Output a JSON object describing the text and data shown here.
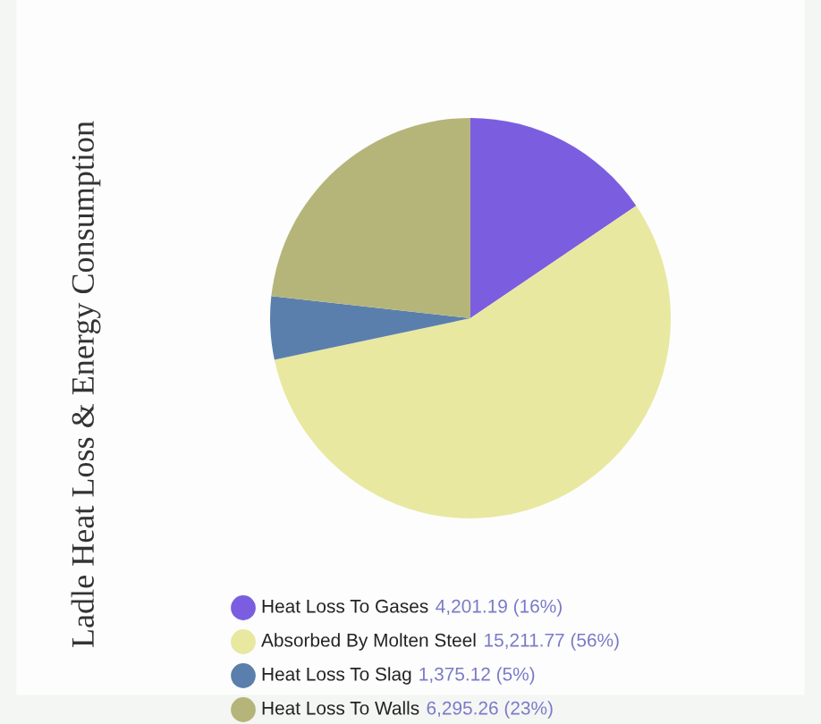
{
  "chart_data": {
    "type": "pie",
    "title": "Ladle Heat Loss & Energy Consumption",
    "categories": [
      "Heat Loss To Gases",
      "Absorbed By Molten Steel",
      "Heat Loss To Slag",
      "Heat Loss To Walls"
    ],
    "values": [
      4201.19,
      15211.77,
      1375.12,
      6295.26
    ],
    "colors": [
      "#7b5ee0",
      "#e8e8a0",
      "#5b7fad",
      "#b5b57a"
    ],
    "value_labels": [
      "4,201.19 (16%)",
      "15,211.77 (56%)",
      "1,375.12 (5%)",
      "6,295.26 (23%)"
    ],
    "legend": "bottom"
  }
}
